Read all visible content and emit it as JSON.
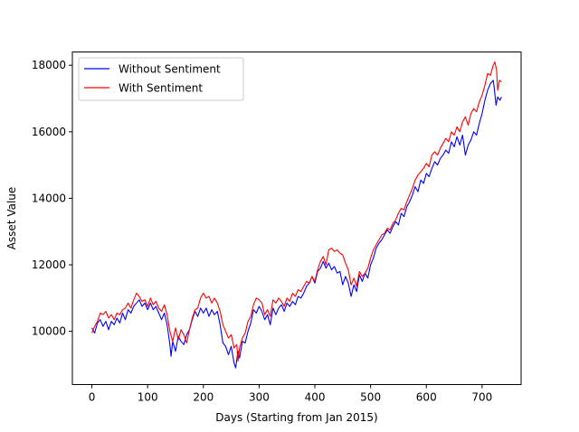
{
  "chart_data": {
    "type": "line",
    "title": "",
    "xlabel": "Days (Starting from Jan 2015)",
    "ylabel": "Asset Value",
    "xlim": [
      -35,
      770
    ],
    "ylim": [
      8400,
      18400
    ],
    "xticks": [
      0,
      100,
      200,
      300,
      400,
      500,
      600,
      700
    ],
    "yticks": [
      10000,
      12000,
      14000,
      16000,
      18000
    ],
    "grid": false,
    "legend_position": "upper-left",
    "series": [
      {
        "name": "Without Sentiment",
        "color": "#0000ff",
        "points": [
          [
            0,
            10100
          ],
          [
            5,
            9950
          ],
          [
            10,
            10250
          ],
          [
            15,
            10350
          ],
          [
            20,
            10150
          ],
          [
            25,
            10300
          ],
          [
            30,
            10050
          ],
          [
            35,
            10300
          ],
          [
            40,
            10200
          ],
          [
            45,
            10400
          ],
          [
            50,
            10250
          ],
          [
            55,
            10550
          ],
          [
            60,
            10350
          ],
          [
            65,
            10650
          ],
          [
            70,
            10550
          ],
          [
            75,
            10750
          ],
          [
            80,
            10850
          ],
          [
            85,
            10950
          ],
          [
            90,
            10750
          ],
          [
            95,
            10850
          ],
          [
            100,
            10650
          ],
          [
            105,
            10850
          ],
          [
            110,
            10650
          ],
          [
            115,
            10750
          ],
          [
            120,
            10550
          ],
          [
            125,
            10350
          ],
          [
            130,
            10550
          ],
          [
            135,
            10200
          ],
          [
            140,
            9600
          ],
          [
            142,
            9250
          ],
          [
            145,
            9700
          ],
          [
            150,
            9400
          ],
          [
            155,
            9850
          ],
          [
            160,
            9700
          ],
          [
            165,
            9600
          ],
          [
            170,
            9900
          ],
          [
            175,
            10050
          ],
          [
            180,
            10350
          ],
          [
            185,
            10600
          ],
          [
            190,
            10450
          ],
          [
            195,
            10700
          ],
          [
            200,
            10550
          ],
          [
            205,
            10700
          ],
          [
            210,
            10450
          ],
          [
            215,
            10650
          ],
          [
            220,
            10500
          ],
          [
            225,
            10600
          ],
          [
            230,
            10200
          ],
          [
            235,
            9650
          ],
          [
            240,
            9550
          ],
          [
            245,
            9300
          ],
          [
            250,
            9550
          ],
          [
            255,
            9050
          ],
          [
            258,
            8900
          ],
          [
            262,
            9400
          ],
          [
            265,
            9200
          ],
          [
            270,
            9700
          ],
          [
            275,
            9650
          ],
          [
            280,
            10000
          ],
          [
            285,
            10250
          ],
          [
            290,
            10650
          ],
          [
            295,
            10550
          ],
          [
            300,
            10750
          ],
          [
            305,
            10600
          ],
          [
            310,
            10350
          ],
          [
            315,
            10500
          ],
          [
            320,
            10200
          ],
          [
            325,
            10700
          ],
          [
            330,
            10500
          ],
          [
            335,
            10700
          ],
          [
            340,
            10800
          ],
          [
            345,
            10600
          ],
          [
            350,
            10850
          ],
          [
            355,
            10750
          ],
          [
            360,
            10900
          ],
          [
            365,
            10800
          ],
          [
            370,
            11050
          ],
          [
            375,
            11000
          ],
          [
            380,
            11150
          ],
          [
            385,
            11350
          ],
          [
            390,
            11450
          ],
          [
            395,
            11650
          ],
          [
            400,
            11450
          ],
          [
            405,
            11800
          ],
          [
            410,
            11900
          ],
          [
            415,
            12100
          ],
          [
            420,
            11900
          ],
          [
            425,
            12050
          ],
          [
            430,
            11850
          ],
          [
            435,
            11950
          ],
          [
            440,
            11750
          ],
          [
            445,
            11800
          ],
          [
            450,
            11400
          ],
          [
            455,
            11650
          ],
          [
            460,
            11450
          ],
          [
            465,
            11050
          ],
          [
            470,
            11400
          ],
          [
            475,
            11200
          ],
          [
            480,
            11700
          ],
          [
            485,
            11500
          ],
          [
            490,
            11750
          ],
          [
            495,
            11600
          ],
          [
            500,
            12000
          ],
          [
            505,
            12200
          ],
          [
            510,
            12500
          ],
          [
            515,
            12650
          ],
          [
            520,
            12750
          ],
          [
            525,
            12900
          ],
          [
            530,
            13050
          ],
          [
            535,
            12950
          ],
          [
            540,
            13150
          ],
          [
            545,
            13300
          ],
          [
            550,
            13200
          ],
          [
            555,
            13550
          ],
          [
            560,
            13450
          ],
          [
            565,
            13750
          ],
          [
            570,
            13900
          ],
          [
            575,
            14100
          ],
          [
            580,
            14350
          ],
          [
            585,
            14200
          ],
          [
            590,
            14550
          ],
          [
            595,
            14450
          ],
          [
            600,
            14750
          ],
          [
            605,
            14650
          ],
          [
            610,
            14900
          ],
          [
            615,
            15100
          ],
          [
            620,
            15000
          ],
          [
            625,
            15200
          ],
          [
            630,
            15300
          ],
          [
            635,
            15450
          ],
          [
            640,
            15350
          ],
          [
            645,
            15700
          ],
          [
            650,
            15550
          ],
          [
            655,
            15850
          ],
          [
            660,
            15600
          ],
          [
            665,
            15900
          ],
          [
            670,
            15300
          ],
          [
            675,
            15600
          ],
          [
            680,
            15750
          ],
          [
            685,
            16000
          ],
          [
            690,
            15900
          ],
          [
            695,
            16250
          ],
          [
            700,
            16550
          ],
          [
            705,
            16950
          ],
          [
            710,
            17250
          ],
          [
            715,
            17450
          ],
          [
            720,
            17550
          ],
          [
            722,
            17300
          ],
          [
            725,
            16800
          ],
          [
            728,
            17050
          ],
          [
            732,
            16950
          ],
          [
            735,
            17050
          ]
        ]
      },
      {
        "name": "With Sentiment",
        "color": "#ff0000",
        "points": [
          [
            0,
            9950
          ],
          [
            5,
            10150
          ],
          [
            10,
            10300
          ],
          [
            15,
            10550
          ],
          [
            20,
            10500
          ],
          [
            25,
            10600
          ],
          [
            30,
            10400
          ],
          [
            35,
            10500
          ],
          [
            40,
            10350
          ],
          [
            45,
            10550
          ],
          [
            50,
            10500
          ],
          [
            55,
            10650
          ],
          [
            60,
            10700
          ],
          [
            65,
            10850
          ],
          [
            70,
            10700
          ],
          [
            75,
            10950
          ],
          [
            80,
            11150
          ],
          [
            85,
            11050
          ],
          [
            90,
            10900
          ],
          [
            95,
            10950
          ],
          [
            100,
            10750
          ],
          [
            105,
            11000
          ],
          [
            110,
            10800
          ],
          [
            115,
            10900
          ],
          [
            120,
            10700
          ],
          [
            125,
            10600
          ],
          [
            130,
            10800
          ],
          [
            135,
            10500
          ],
          [
            140,
            10000
          ],
          [
            145,
            9700
          ],
          [
            150,
            10100
          ],
          [
            155,
            9750
          ],
          [
            160,
            10050
          ],
          [
            165,
            9900
          ],
          [
            170,
            9650
          ],
          [
            175,
            10050
          ],
          [
            180,
            10400
          ],
          [
            185,
            10650
          ],
          [
            190,
            10700
          ],
          [
            195,
            11000
          ],
          [
            200,
            11150
          ],
          [
            205,
            11000
          ],
          [
            210,
            11050
          ],
          [
            215,
            10850
          ],
          [
            220,
            11000
          ],
          [
            225,
            10850
          ],
          [
            230,
            10600
          ],
          [
            235,
            10200
          ],
          [
            240,
            10000
          ],
          [
            245,
            9800
          ],
          [
            250,
            9900
          ],
          [
            255,
            9500
          ],
          [
            260,
            9600
          ],
          [
            262,
            9100
          ],
          [
            265,
            9500
          ],
          [
            270,
            9800
          ],
          [
            275,
            9950
          ],
          [
            280,
            10300
          ],
          [
            285,
            10450
          ],
          [
            290,
            10800
          ],
          [
            295,
            11000
          ],
          [
            300,
            10950
          ],
          [
            305,
            10850
          ],
          [
            310,
            10500
          ],
          [
            315,
            10650
          ],
          [
            320,
            10450
          ],
          [
            325,
            10950
          ],
          [
            330,
            10850
          ],
          [
            335,
            11000
          ],
          [
            340,
            10900
          ],
          [
            345,
            10750
          ],
          [
            350,
            11000
          ],
          [
            355,
            10900
          ],
          [
            360,
            11150
          ],
          [
            365,
            11050
          ],
          [
            370,
            11250
          ],
          [
            375,
            11200
          ],
          [
            380,
            11350
          ],
          [
            385,
            11500
          ],
          [
            390,
            11450
          ],
          [
            395,
            11650
          ],
          [
            400,
            11500
          ],
          [
            405,
            11850
          ],
          [
            410,
            12100
          ],
          [
            415,
            12250
          ],
          [
            420,
            12000
          ],
          [
            425,
            12450
          ],
          [
            430,
            12500
          ],
          [
            435,
            12400
          ],
          [
            440,
            12450
          ],
          [
            445,
            12350
          ],
          [
            450,
            12300
          ],
          [
            455,
            12050
          ],
          [
            460,
            11850
          ],
          [
            465,
            11400
          ],
          [
            470,
            11600
          ],
          [
            475,
            11350
          ],
          [
            480,
            11800
          ],
          [
            485,
            11650
          ],
          [
            490,
            11750
          ],
          [
            495,
            11900
          ],
          [
            500,
            12200
          ],
          [
            505,
            12450
          ],
          [
            510,
            12600
          ],
          [
            515,
            12750
          ],
          [
            520,
            12900
          ],
          [
            525,
            12950
          ],
          [
            530,
            13100
          ],
          [
            535,
            13050
          ],
          [
            540,
            13250
          ],
          [
            545,
            13350
          ],
          [
            550,
            13550
          ],
          [
            555,
            13700
          ],
          [
            560,
            13650
          ],
          [
            565,
            13900
          ],
          [
            570,
            14100
          ],
          [
            575,
            14300
          ],
          [
            580,
            14550
          ],
          [
            585,
            14700
          ],
          [
            590,
            14800
          ],
          [
            595,
            14900
          ],
          [
            600,
            15050
          ],
          [
            605,
            14950
          ],
          [
            610,
            15300
          ],
          [
            615,
            15400
          ],
          [
            620,
            15300
          ],
          [
            625,
            15500
          ],
          [
            630,
            15650
          ],
          [
            635,
            15800
          ],
          [
            640,
            15700
          ],
          [
            645,
            16000
          ],
          [
            650,
            15900
          ],
          [
            655,
            16150
          ],
          [
            660,
            16000
          ],
          [
            665,
            16300
          ],
          [
            670,
            16450
          ],
          [
            675,
            16200
          ],
          [
            680,
            16550
          ],
          [
            685,
            16700
          ],
          [
            690,
            16600
          ],
          [
            695,
            16900
          ],
          [
            700,
            17100
          ],
          [
            705,
            17400
          ],
          [
            710,
            17750
          ],
          [
            715,
            17700
          ],
          [
            720,
            18000
          ],
          [
            723,
            18100
          ],
          [
            726,
            17850
          ],
          [
            728,
            17250
          ],
          [
            731,
            17550
          ],
          [
            735,
            17500
          ]
        ]
      }
    ]
  }
}
